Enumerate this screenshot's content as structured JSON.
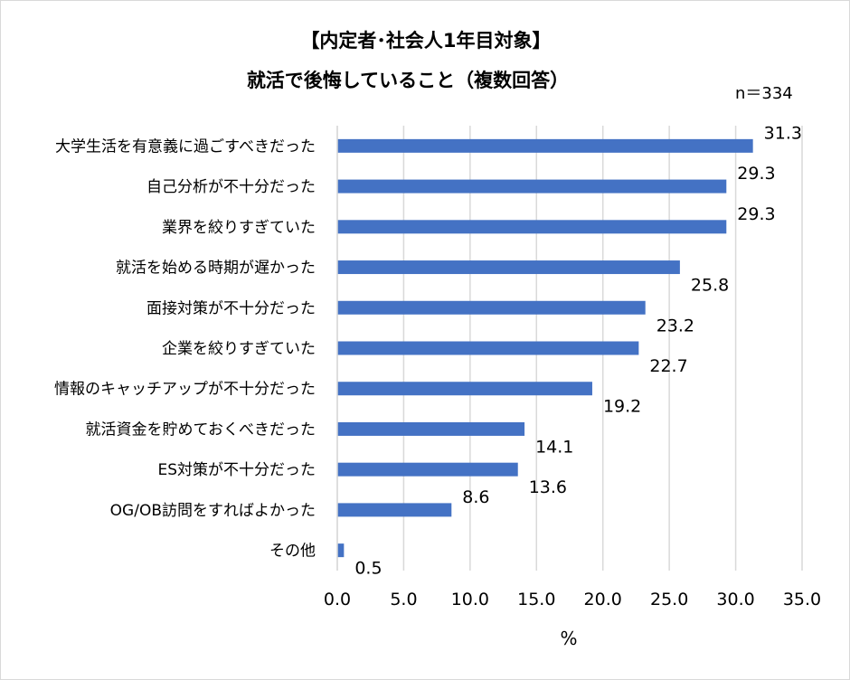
{
  "chart_data": {
    "type": "bar",
    "orientation": "horizontal",
    "title": "【内定者･社会人1年目対象】",
    "subtitle": "就活で後悔していること（複数回答）",
    "sample_size": "n＝334",
    "categories": [
      "大学生活を有意義に過ごすべきだった",
      "自己分析が不十分だった",
      "業界を絞りすぎていた",
      "就活を始める時期が遅かった",
      "面接対策が不十分だった",
      "企業を絞りすぎていた",
      "情報のキャッチアップが不十分だった",
      "就活資金を貯めておくべきだった",
      "ES対策が不十分だった",
      "OG/OB訪問をすればよかった",
      "その他"
    ],
    "values": [
      31.3,
      29.3,
      29.3,
      25.8,
      23.2,
      22.7,
      19.2,
      14.1,
      13.6,
      8.6,
      0.5
    ],
    "value_labels": [
      "31.3",
      "29.3",
      "29.3",
      "25.8",
      "23.2",
      "22.7",
      "19.2",
      "14.1",
      "13.6",
      "8.6",
      "0.5"
    ],
    "xlim": [
      0,
      35
    ],
    "xticks": [
      "0.0",
      "5.0",
      "10.0",
      "15.0",
      "20.0",
      "25.0",
      "30.0",
      "35.0"
    ],
    "xlabel": "%",
    "grid": "vertical",
    "bar_color": "#4472c4",
    "grid_color": "#d9d9d9"
  }
}
